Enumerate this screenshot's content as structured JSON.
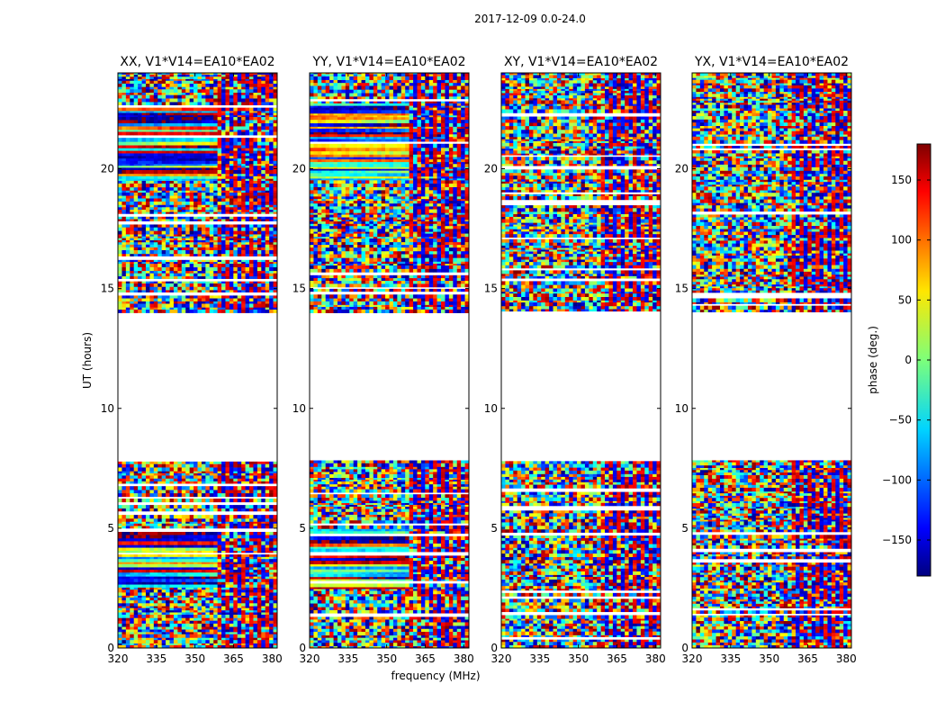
{
  "suptitle": "2017-12-09 0.0-24.0",
  "colorbar": {
    "label": "phase (deg.)",
    "ticks": [
      150,
      100,
      50,
      0,
      -50,
      -100,
      -150
    ],
    "tick_labels": [
      "150",
      "100",
      "50",
      "0",
      "−50",
      "−100",
      "−150"
    ],
    "range": [
      -180,
      180
    ],
    "colormap": "jet"
  },
  "chart_data": [
    {
      "type": "heatmap",
      "title": "XX, V1*V14=EA10*EA02",
      "xlabel": "",
      "ylabel": "UT (hours)",
      "xlim": [
        320,
        382
      ],
      "ylim": [
        0,
        24
      ],
      "xticks": [
        320,
        335,
        350,
        365,
        380
      ],
      "yticks": [
        0,
        5,
        10,
        15,
        20
      ],
      "flagged_gap_hours": [
        7.8,
        14.0
      ],
      "value": "phase (deg.)"
    },
    {
      "type": "heatmap",
      "title": "YY, V1*V14=EA10*EA02",
      "xlabel": "frequency (MHz)",
      "ylabel": "",
      "xlim": [
        320,
        382
      ],
      "ylim": [
        0,
        24
      ],
      "xticks": [
        320,
        335,
        350,
        365,
        380
      ],
      "yticks": [
        0,
        5,
        10,
        15,
        20
      ],
      "flagged_gap_hours": [
        7.8,
        14.0
      ],
      "value": "phase (deg.)"
    },
    {
      "type": "heatmap",
      "title": "XY, V1*V14=EA10*EA02",
      "xlabel": "",
      "ylabel": "",
      "xlim": [
        320,
        382
      ],
      "ylim": [
        0,
        24
      ],
      "xticks": [
        320,
        335,
        350,
        365,
        380
      ],
      "yticks": [
        0,
        5,
        10,
        15,
        20
      ],
      "flagged_gap_hours": [
        7.8,
        14.0
      ],
      "value": "phase (deg.)"
    },
    {
      "type": "heatmap",
      "title": "YX, V1*V14=EA10*EA02",
      "xlabel": "",
      "ylabel": "",
      "xlim": [
        320,
        382
      ],
      "ylim": [
        0,
        24
      ],
      "xticks": [
        320,
        335,
        350,
        365,
        380
      ],
      "yticks": [
        0,
        5,
        10,
        15,
        20
      ],
      "flagged_gap_hours": [
        7.8,
        14.0
      ],
      "value": "phase (deg.)"
    }
  ]
}
